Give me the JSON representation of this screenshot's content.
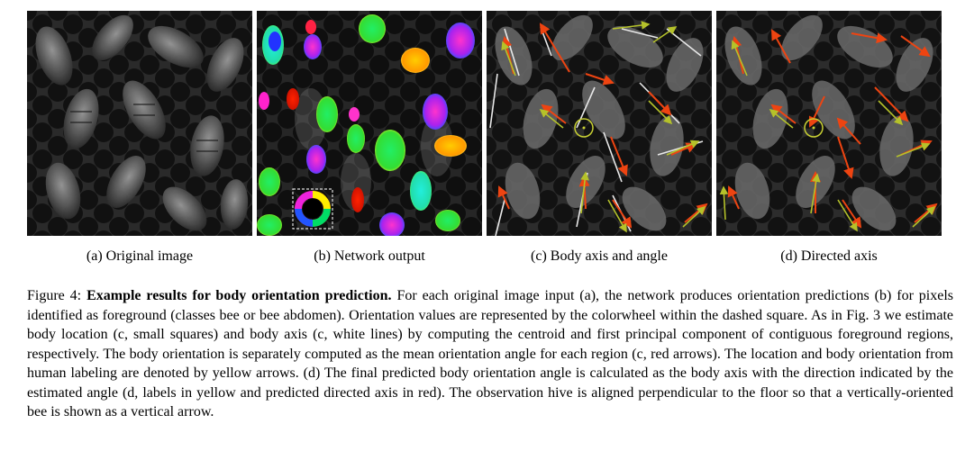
{
  "figure": {
    "panels": [
      {
        "id": "a",
        "label": "(a) Original image"
      },
      {
        "id": "b",
        "label": "(b) Network output"
      },
      {
        "id": "c",
        "label": "(c) Body axis and angle"
      },
      {
        "id": "d",
        "label": "(d) Directed axis"
      }
    ],
    "caption": {
      "label": "Figure 4:",
      "title": "Example results for body orientation prediction.",
      "text": "For each original image input (a), the network produces orientation predictions (b) for pixels identified as foreground (classes bee or bee abdomen). Orientation values are represented by the colorwheel within the dashed square. As in Fig. 3 we estimate body location (c, small squares) and body axis (c, white lines) by computing the centroid and first principal component of contiguous foreground regions, respectively. The body orientation is separately computed as the mean orientation angle for each region (c, red arrows). The location and body orientation from human labeling are denoted by yellow arrows. (d) The final predicted body orientation angle is calculated as the body axis with the direction indicated by the estimated angle (d, labels in yellow and predicted directed axis in red). The observation hive is aligned perpendicular to the floor so that a vertically-oriented bee is shown as a vertical arrow."
    }
  }
}
